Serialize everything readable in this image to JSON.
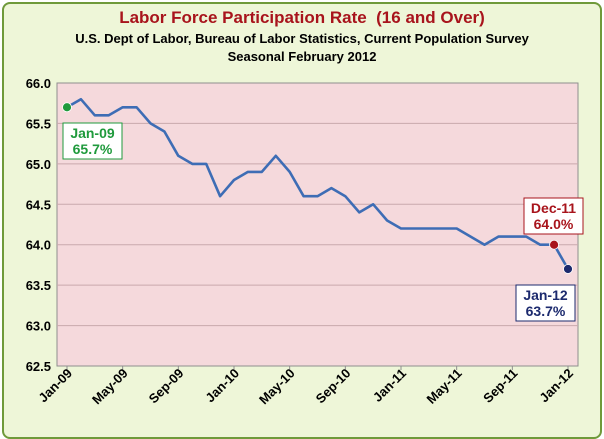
{
  "chart_data": {
    "type": "line",
    "title": "Labor Force Participation Rate  (16 and Over)",
    "subtitle": [
      "U.S. Dept of Labor, Bureau of Labor Statistics, Current Population Survey",
      "Seasonal February 2012"
    ],
    "xlabel": "",
    "ylabel": "",
    "ylim": [
      62.5,
      66.0
    ],
    "yticks": [
      "62.5",
      "63.0",
      "63.5",
      "64.0",
      "64.5",
      "65.0",
      "65.5",
      "66.0"
    ],
    "xticks": [
      "Jan-09",
      "May-09",
      "Sep-09",
      "Jan-10",
      "May-10",
      "Sep-10",
      "Jan-11",
      "May-11",
      "Sep-11",
      "Jan-12"
    ],
    "grid": "horizontal",
    "series": [
      {
        "name": "Labor Force Participation Rate",
        "color": "#3e6db5",
        "x": [
          "Jan-09",
          "Feb-09",
          "Mar-09",
          "Apr-09",
          "May-09",
          "Jun-09",
          "Jul-09",
          "Aug-09",
          "Sep-09",
          "Oct-09",
          "Nov-09",
          "Dec-09",
          "Jan-10",
          "Feb-10",
          "Mar-10",
          "Apr-10",
          "May-10",
          "Jun-10",
          "Jul-10",
          "Aug-10",
          "Sep-10",
          "Oct-10",
          "Nov-10",
          "Dec-10",
          "Jan-11",
          "Feb-11",
          "Mar-11",
          "Apr-11",
          "May-11",
          "Jun-11",
          "Jul-11",
          "Aug-11",
          "Sep-11",
          "Oct-11",
          "Nov-11",
          "Dec-11",
          "Jan-12"
        ],
        "values": [
          65.7,
          65.8,
          65.6,
          65.6,
          65.7,
          65.7,
          65.5,
          65.4,
          65.1,
          65.0,
          65.0,
          64.6,
          64.8,
          64.9,
          64.9,
          65.1,
          64.9,
          64.6,
          64.6,
          64.7,
          64.6,
          64.4,
          64.5,
          64.3,
          64.2,
          64.2,
          64.2,
          64.2,
          64.2,
          64.1,
          64.0,
          64.1,
          64.1,
          64.1,
          64.0,
          64.0,
          63.7
        ]
      }
    ],
    "annotations": [
      {
        "index": 0,
        "label": "Jan-09",
        "value": "65.7%",
        "color": "#1f9a3c"
      },
      {
        "index": 35,
        "label": "Dec-11",
        "value": "64.0%",
        "color": "#a8141c"
      },
      {
        "index": 36,
        "label": "Jan-12",
        "value": "63.7%",
        "color": "#1c2a6e"
      }
    ]
  }
}
